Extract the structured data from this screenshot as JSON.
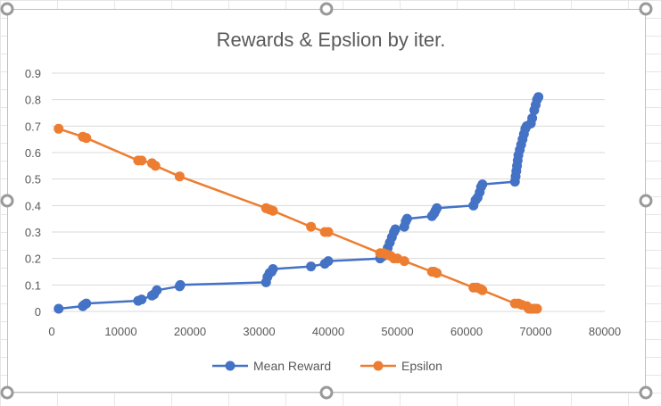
{
  "chart_data": {
    "type": "scatter",
    "title": "Rewards & Epslion by iter.",
    "xlabel": "",
    "ylabel": "",
    "xlim": [
      0,
      80000
    ],
    "ylim": [
      0,
      0.9
    ],
    "x_ticks": [
      "0",
      "10000",
      "20000",
      "30000",
      "40000",
      "50000",
      "60000",
      "70000",
      "80000"
    ],
    "y_ticks": [
      "0",
      "0.1",
      "0.2",
      "0.3",
      "0.4",
      "0.5",
      "0.6",
      "0.7",
      "0.8",
      "0.9"
    ],
    "grid": "horizontal",
    "legend_position": "bottom",
    "series": [
      {
        "name": "Mean Reward",
        "color": "#4472C4",
        "points": [
          [
            1000,
            0.01
          ],
          [
            4500,
            0.02
          ],
          [
            4700,
            0.025
          ],
          [
            5000,
            0.03
          ],
          [
            12500,
            0.04
          ],
          [
            13000,
            0.045
          ],
          [
            14500,
            0.06
          ],
          [
            14800,
            0.065
          ],
          [
            15200,
            0.08
          ],
          [
            18500,
            0.095
          ],
          [
            18600,
            0.1
          ],
          [
            31000,
            0.11
          ],
          [
            31200,
            0.13
          ],
          [
            31500,
            0.145
          ],
          [
            31800,
            0.15
          ],
          [
            32000,
            0.16
          ],
          [
            37500,
            0.17
          ],
          [
            39500,
            0.18
          ],
          [
            40000,
            0.19
          ],
          [
            47500,
            0.2
          ],
          [
            48000,
            0.21
          ],
          [
            48300,
            0.22
          ],
          [
            48600,
            0.24
          ],
          [
            48900,
            0.26
          ],
          [
            49200,
            0.28
          ],
          [
            49500,
            0.3
          ],
          [
            49700,
            0.31
          ],
          [
            51000,
            0.32
          ],
          [
            51200,
            0.34
          ],
          [
            51400,
            0.35
          ],
          [
            55000,
            0.36
          ],
          [
            55300,
            0.37
          ],
          [
            55500,
            0.38
          ],
          [
            55700,
            0.39
          ],
          [
            61000,
            0.4
          ],
          [
            61300,
            0.42
          ],
          [
            61600,
            0.43
          ],
          [
            61900,
            0.45
          ],
          [
            62100,
            0.47
          ],
          [
            62300,
            0.48
          ],
          [
            67000,
            0.49
          ],
          [
            67100,
            0.51
          ],
          [
            67200,
            0.53
          ],
          [
            67300,
            0.55
          ],
          [
            67400,
            0.57
          ],
          [
            67500,
            0.59
          ],
          [
            67700,
            0.61
          ],
          [
            67900,
            0.63
          ],
          [
            68100,
            0.65
          ],
          [
            68300,
            0.67
          ],
          [
            68500,
            0.69
          ],
          [
            68700,
            0.7
          ],
          [
            69300,
            0.71
          ],
          [
            69500,
            0.73
          ],
          [
            69800,
            0.76
          ],
          [
            70000,
            0.78
          ],
          [
            70200,
            0.8
          ],
          [
            70400,
            0.81
          ]
        ]
      },
      {
        "name": "Epsilon",
        "color": "#ED7D31",
        "points": [
          [
            1000,
            0.69
          ],
          [
            4500,
            0.66
          ],
          [
            5000,
            0.655
          ],
          [
            12500,
            0.57
          ],
          [
            13000,
            0.57
          ],
          [
            14500,
            0.56
          ],
          [
            15000,
            0.55
          ],
          [
            18500,
            0.51
          ],
          [
            31000,
            0.39
          ],
          [
            31500,
            0.385
          ],
          [
            32000,
            0.38
          ],
          [
            37500,
            0.32
          ],
          [
            39500,
            0.3
          ],
          [
            40000,
            0.3
          ],
          [
            47500,
            0.22
          ],
          [
            48000,
            0.22
          ],
          [
            48500,
            0.215
          ],
          [
            49000,
            0.21
          ],
          [
            49500,
            0.2
          ],
          [
            50000,
            0.2
          ],
          [
            51000,
            0.19
          ],
          [
            55000,
            0.15
          ],
          [
            55300,
            0.15
          ],
          [
            55700,
            0.145
          ],
          [
            61000,
            0.09
          ],
          [
            61500,
            0.09
          ],
          [
            62000,
            0.085
          ],
          [
            62300,
            0.08
          ],
          [
            67000,
            0.03
          ],
          [
            67500,
            0.03
          ],
          [
            68000,
            0.025
          ],
          [
            68700,
            0.02
          ],
          [
            69000,
            0.01
          ],
          [
            69300,
            0.01
          ],
          [
            69600,
            0.01
          ],
          [
            69900,
            0.01
          ],
          [
            70200,
            0.01
          ]
        ]
      }
    ]
  }
}
